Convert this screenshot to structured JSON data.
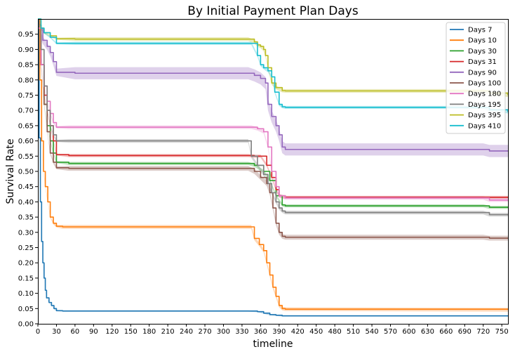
{
  "chart_data": {
    "type": "line",
    "title": "By Initial Payment Plan Days",
    "xlabel": "timeline",
    "ylabel": "Survival Rate",
    "xlim": [
      0,
      760
    ],
    "ylim": [
      0,
      1.0
    ],
    "x_ticks": [
      0,
      30,
      60,
      90,
      120,
      150,
      180,
      210,
      240,
      270,
      300,
      330,
      360,
      390,
      420,
      450,
      480,
      510,
      540,
      570,
      600,
      630,
      660,
      690,
      720,
      750
    ],
    "y_ticks": [
      0.0,
      0.05,
      0.1,
      0.15,
      0.2,
      0.25,
      0.3,
      0.35,
      0.4,
      0.45,
      0.5,
      0.55,
      0.6,
      0.65,
      0.7,
      0.75,
      0.8,
      0.85,
      0.9,
      0.95
    ],
    "legend_position": "top-right",
    "grid": false,
    "series": [
      {
        "name": "Days 7",
        "color": "#1f77b4",
        "band": 0.002,
        "points": [
          [
            0,
            1.0
          ],
          [
            2,
            0.61
          ],
          [
            4,
            0.4
          ],
          [
            6,
            0.27
          ],
          [
            8,
            0.2
          ],
          [
            10,
            0.15
          ],
          [
            12,
            0.11
          ],
          [
            14,
            0.085
          ],
          [
            18,
            0.07
          ],
          [
            22,
            0.06
          ],
          [
            26,
            0.05
          ],
          [
            30,
            0.043
          ],
          [
            40,
            0.042
          ],
          [
            340,
            0.042
          ],
          [
            355,
            0.04
          ],
          [
            365,
            0.035
          ],
          [
            375,
            0.03
          ],
          [
            385,
            0.028
          ],
          [
            395,
            0.026
          ],
          [
            760,
            0.026
          ]
        ]
      },
      {
        "name": "Days 10",
        "color": "#ff7f0e",
        "band": 0.006,
        "points": [
          [
            0,
            1.0
          ],
          [
            3,
            0.8
          ],
          [
            6,
            0.6
          ],
          [
            9,
            0.5
          ],
          [
            12,
            0.45
          ],
          [
            16,
            0.4
          ],
          [
            20,
            0.35
          ],
          [
            25,
            0.33
          ],
          [
            30,
            0.32
          ],
          [
            40,
            0.318
          ],
          [
            345,
            0.318
          ],
          [
            350,
            0.28
          ],
          [
            358,
            0.26
          ],
          [
            365,
            0.24
          ],
          [
            370,
            0.2
          ],
          [
            375,
            0.16
          ],
          [
            380,
            0.12
          ],
          [
            385,
            0.09
          ],
          [
            390,
            0.06
          ],
          [
            395,
            0.05
          ],
          [
            400,
            0.048
          ],
          [
            760,
            0.046
          ]
        ]
      },
      {
        "name": "Days 30",
        "color": "#2ca02c",
        "band": 0.005,
        "points": [
          [
            0,
            0.98
          ],
          [
            5,
            0.85
          ],
          [
            10,
            0.72
          ],
          [
            15,
            0.65
          ],
          [
            20,
            0.6
          ],
          [
            25,
            0.56
          ],
          [
            30,
            0.53
          ],
          [
            50,
            0.526
          ],
          [
            340,
            0.526
          ],
          [
            350,
            0.52
          ],
          [
            365,
            0.5
          ],
          [
            375,
            0.47
          ],
          [
            385,
            0.42
          ],
          [
            395,
            0.39
          ],
          [
            400,
            0.387
          ],
          [
            720,
            0.387
          ],
          [
            730,
            0.382
          ],
          [
            760,
            0.382
          ]
        ]
      },
      {
        "name": "Days 31",
        "color": "#d62728",
        "band": 0.005,
        "points": [
          [
            0,
            0.98
          ],
          [
            5,
            0.85
          ],
          [
            10,
            0.75
          ],
          [
            15,
            0.7
          ],
          [
            20,
            0.65
          ],
          [
            25,
            0.6
          ],
          [
            30,
            0.555
          ],
          [
            50,
            0.552
          ],
          [
            340,
            0.552
          ],
          [
            350,
            0.55
          ],
          [
            360,
            0.55
          ],
          [
            370,
            0.52
          ],
          [
            378,
            0.48
          ],
          [
            385,
            0.44
          ],
          [
            390,
            0.42
          ],
          [
            400,
            0.415
          ],
          [
            760,
            0.415
          ]
        ]
      },
      {
        "name": "Days 90",
        "color": "#9467bd",
        "band": 0.02,
        "points": [
          [
            0,
            0.97
          ],
          [
            8,
            0.93
          ],
          [
            15,
            0.91
          ],
          [
            20,
            0.89
          ],
          [
            25,
            0.86
          ],
          [
            30,
            0.825
          ],
          [
            60,
            0.822
          ],
          [
            340,
            0.822
          ],
          [
            350,
            0.815
          ],
          [
            360,
            0.805
          ],
          [
            368,
            0.79
          ],
          [
            372,
            0.72
          ],
          [
            378,
            0.68
          ],
          [
            385,
            0.65
          ],
          [
            390,
            0.62
          ],
          [
            395,
            0.58
          ],
          [
            400,
            0.572
          ],
          [
            720,
            0.572
          ],
          [
            730,
            0.567
          ],
          [
            760,
            0.567
          ]
        ]
      },
      {
        "name": "Days 100",
        "color": "#8c564b",
        "band": 0.008,
        "points": [
          [
            0,
            0.97
          ],
          [
            5,
            0.85
          ],
          [
            10,
            0.72
          ],
          [
            15,
            0.63
          ],
          [
            20,
            0.56
          ],
          [
            25,
            0.53
          ],
          [
            30,
            0.512
          ],
          [
            50,
            0.51
          ],
          [
            340,
            0.51
          ],
          [
            350,
            0.5
          ],
          [
            360,
            0.48
          ],
          [
            370,
            0.46
          ],
          [
            375,
            0.43
          ],
          [
            380,
            0.38
          ],
          [
            385,
            0.33
          ],
          [
            390,
            0.3
          ],
          [
            395,
            0.287
          ],
          [
            400,
            0.284
          ],
          [
            720,
            0.284
          ],
          [
            730,
            0.281
          ],
          [
            760,
            0.281
          ]
        ]
      },
      {
        "name": "Days 180",
        "color": "#e377c2",
        "band": 0.006,
        "points": [
          [
            0,
            0.97
          ],
          [
            5,
            0.85
          ],
          [
            10,
            0.78
          ],
          [
            15,
            0.73
          ],
          [
            20,
            0.69
          ],
          [
            25,
            0.66
          ],
          [
            30,
            0.645
          ],
          [
            50,
            0.645
          ],
          [
            345,
            0.645
          ],
          [
            355,
            0.64
          ],
          [
            365,
            0.63
          ],
          [
            372,
            0.58
          ],
          [
            378,
            0.5
          ],
          [
            385,
            0.45
          ],
          [
            390,
            0.42
          ],
          [
            400,
            0.413
          ],
          [
            720,
            0.413
          ],
          [
            730,
            0.406
          ],
          [
            760,
            0.406
          ]
        ]
      },
      {
        "name": "Days 195",
        "color": "#7f7f7f",
        "band": 0.006,
        "points": [
          [
            0,
            0.98
          ],
          [
            5,
            0.9
          ],
          [
            10,
            0.78
          ],
          [
            15,
            0.7
          ],
          [
            20,
            0.65
          ],
          [
            25,
            0.62
          ],
          [
            30,
            0.6
          ],
          [
            50,
            0.6
          ],
          [
            340,
            0.6
          ],
          [
            345,
            0.55
          ],
          [
            355,
            0.52
          ],
          [
            365,
            0.49
          ],
          [
            372,
            0.46
          ],
          [
            378,
            0.43
          ],
          [
            385,
            0.4
          ],
          [
            390,
            0.38
          ],
          [
            395,
            0.37
          ],
          [
            400,
            0.365
          ],
          [
            720,
            0.365
          ],
          [
            730,
            0.358
          ],
          [
            760,
            0.358
          ]
        ]
      },
      {
        "name": "Days 395",
        "color": "#bcbd22",
        "band": 0.006,
        "points": [
          [
            0,
            1.0
          ],
          [
            5,
            0.97
          ],
          [
            10,
            0.955
          ],
          [
            20,
            0.945
          ],
          [
            30,
            0.935
          ],
          [
            60,
            0.934
          ],
          [
            340,
            0.934
          ],
          [
            350,
            0.925
          ],
          [
            355,
            0.915
          ],
          [
            360,
            0.91
          ],
          [
            365,
            0.9
          ],
          [
            368,
            0.88
          ],
          [
            372,
            0.84
          ],
          [
            378,
            0.79
          ],
          [
            385,
            0.775
          ],
          [
            395,
            0.765
          ],
          [
            400,
            0.764
          ],
          [
            720,
            0.764
          ],
          [
            730,
            0.757
          ],
          [
            760,
            0.75
          ]
        ]
      },
      {
        "name": "Days 410",
        "color": "#17becf",
        "band": 0.005,
        "points": [
          [
            0,
            1.0
          ],
          [
            5,
            0.97
          ],
          [
            10,
            0.955
          ],
          [
            20,
            0.94
          ],
          [
            30,
            0.92
          ],
          [
            60,
            0.92
          ],
          [
            345,
            0.92
          ],
          [
            355,
            0.88
          ],
          [
            360,
            0.85
          ],
          [
            365,
            0.84
          ],
          [
            372,
            0.83
          ],
          [
            378,
            0.81
          ],
          [
            383,
            0.76
          ],
          [
            390,
            0.72
          ],
          [
            395,
            0.712
          ],
          [
            400,
            0.71
          ],
          [
            720,
            0.71
          ],
          [
            730,
            0.702
          ],
          [
            760,
            0.695
          ]
        ]
      }
    ]
  }
}
